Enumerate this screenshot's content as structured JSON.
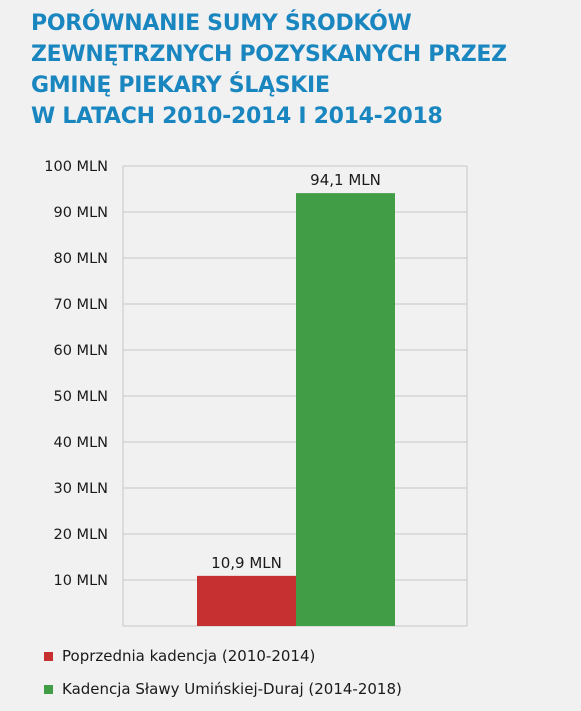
{
  "title_lines": [
    "PORÓWNANIE SUMY ŚRODKÓW",
    "ZEWNĘTRZNYCH POZYSKANYCH PRZEZ",
    "GMINĘ PIEKARY ŚLĄSKIE",
    "W LATACH 2010-2014 I 2014-2018"
  ],
  "colors": {
    "title": "#1a86bf",
    "background": "#f1f1f2",
    "grid": "#c7c7c7",
    "previous": "#c63031",
    "current": "#419d46"
  },
  "chart_data": {
    "type": "bar",
    "title": "PORÓWNANIE SUMY ŚRODKÓW ZEWNĘTRZNYCH POZYSKANYCH PRZEZ GMINĘ PIEKARY ŚLĄSKIE W LATACH 2010-2014 I 2014-2018",
    "xlabel": "",
    "ylabel": "",
    "ylim": [
      0,
      100
    ],
    "unit": "MLN",
    "y_ticks": [
      10,
      20,
      30,
      40,
      50,
      60,
      70,
      80,
      90,
      100
    ],
    "y_tick_labels": [
      "10 MLN",
      "20 MLN",
      "30 MLN",
      "40 MLN",
      "50 MLN",
      "60 MLN",
      "70 MLN",
      "80 MLN",
      "90 MLN",
      "100 MLN"
    ],
    "grid": true,
    "legend_position": "bottom",
    "series": [
      {
        "name": "Poprzednia kadencja (2010-2014)",
        "value": 10.9,
        "label": "10,9 MLN",
        "color": "#c63031"
      },
      {
        "name": "Kadencja Sławy Umińskiej-Duraj (2014-2018)",
        "value": 94.1,
        "label": "94,1 MLN",
        "color": "#419d46"
      }
    ]
  }
}
